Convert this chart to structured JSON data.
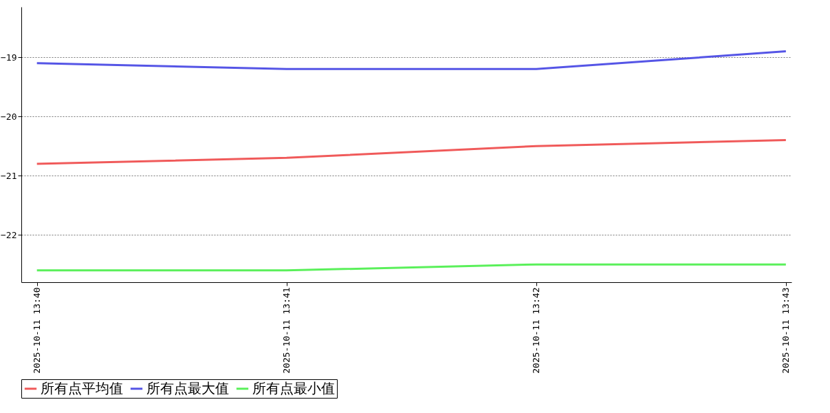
{
  "chart_data": {
    "type": "line",
    "categories": [
      "2025-10-11 13:40",
      "2025-10-11 13:41",
      "2025-10-11 13:42",
      "2025-10-11 13:43"
    ],
    "series": [
      {
        "name": "所有点平均值",
        "color": "#f05a5a",
        "values": [
          -20.8,
          -20.7,
          -20.5,
          -20.4
        ]
      },
      {
        "name": "所有点最大值",
        "color": "#5555e6",
        "values": [
          -19.1,
          -19.2,
          -19.2,
          -18.9
        ]
      },
      {
        "name": "所有点最小值",
        "color": "#5af05a",
        "values": [
          -22.6,
          -22.6,
          -22.5,
          -22.5
        ]
      }
    ],
    "ylim": [
      -22.8,
      -18.15
    ],
    "yticks": [
      -22,
      -21,
      -20,
      -19
    ],
    "grid": "y",
    "legend": "bottom"
  }
}
